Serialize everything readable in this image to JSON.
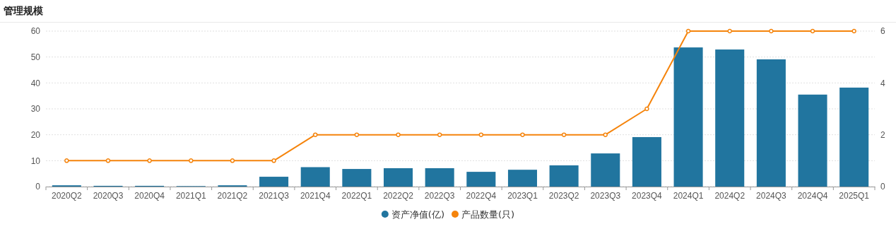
{
  "chart_data": {
    "type": "bar",
    "title": "管理规模",
    "categories": [
      "2020Q2",
      "2020Q3",
      "2020Q4",
      "2021Q1",
      "2021Q2",
      "2021Q3",
      "2021Q4",
      "2022Q1",
      "2022Q2",
      "2022Q3",
      "2022Q4",
      "2023Q1",
      "2023Q2",
      "2023Q3",
      "2023Q4",
      "2024Q1",
      "2024Q2",
      "2024Q3",
      "2024Q4",
      "2025Q1"
    ],
    "series": [
      {
        "name": "资产净值(亿)",
        "color": "#21759f",
        "values": [
          0.5,
          0.3,
          0.3,
          0.2,
          0.5,
          3.8,
          7.5,
          6.8,
          7.1,
          7.1,
          5.7,
          6.5,
          8.2,
          12.8,
          19.1,
          53.7,
          52.9,
          49.1,
          35.5,
          38.2
        ]
      },
      {
        "name": "产品数量(只)",
        "type": "line",
        "axis": "y2",
        "color": "#f5840c",
        "marker": "circle",
        "values": [
          1,
          1,
          1,
          1,
          1,
          1,
          2,
          2,
          2,
          2,
          2,
          2,
          2,
          2,
          3,
          6,
          6,
          6,
          6,
          6
        ]
      }
    ],
    "ylim": [
      0,
      60
    ],
    "yticks": [
      0,
      10,
      20,
      30,
      40,
      50,
      60
    ],
    "y2lim": [
      0,
      6
    ],
    "y2ticks": [
      0,
      2,
      4,
      6
    ],
    "grid": "y",
    "legend": "bottom"
  }
}
